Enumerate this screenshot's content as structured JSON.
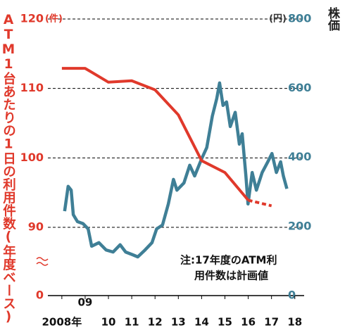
{
  "chart_data": {
    "type": "line",
    "ylabel": "ATM1台あたりの1日の利用件数(年度ベース)",
    "ylabel_unit": "(件)",
    "y2label": "株価",
    "y2label_unit": "(円)",
    "note": [
      "注:17年度のATM利",
      "用件数は計画値"
    ],
    "xlim": [
      2007.4,
      2018.4
    ],
    "xticks": [
      {
        "value": 2008,
        "label": "2008年"
      },
      {
        "value": 2009,
        "label": "09"
      },
      {
        "value": 2010,
        "label": "10"
      },
      {
        "value": 2011,
        "label": "11"
      },
      {
        "value": 2012,
        "label": "12"
      },
      {
        "value": 2013,
        "label": "13"
      },
      {
        "value": 2014,
        "label": "14"
      },
      {
        "value": 2015,
        "label": "15"
      },
      {
        "value": 2016,
        "label": "16"
      },
      {
        "value": 2017,
        "label": "17"
      },
      {
        "value": 2018,
        "label": "18"
      }
    ],
    "ylim": [
      0,
      120
    ],
    "yticks": [
      0,
      90,
      100,
      110,
      120
    ],
    "y_break": true,
    "y2lim": [
      0,
      800
    ],
    "y2ticks": [
      0,
      200,
      400,
      600,
      800
    ],
    "grid": true,
    "series": [
      {
        "color": "#e0392b",
        "dashed": false,
        "x": [
          2008,
          2009,
          2010,
          2011,
          2012,
          2013,
          2014,
          2015,
          2016
        ],
        "values": [
          112.9,
          112.9,
          110.9,
          111.1,
          109.8,
          106.2,
          99.6,
          97.9,
          93.9
        ]
      },
      {
        "color": "#e0392b",
        "dashed": true,
        "x": [
          2016,
          2017
        ],
        "values": [
          93.9,
          93.1
        ]
      },
      {
        "color": "#3f7f96",
        "dashed": false,
        "axis": "y2",
        "x": [
          2008.12,
          2008.27,
          2008.4,
          2008.49,
          2008.67,
          2008.91,
          2009.13,
          2009.28,
          2009.59,
          2009.9,
          2010.2,
          2010.5,
          2010.74,
          2011.04,
          2011.26,
          2011.57,
          2011.87,
          2012.07,
          2012.32,
          2012.57,
          2012.79,
          2012.94,
          2013.24,
          2013.49,
          2013.7,
          2014.01,
          2014.22,
          2014.46,
          2014.65,
          2014.77,
          2014.92,
          2015.07,
          2015.23,
          2015.44,
          2015.62,
          2015.74,
          2015.9,
          2015.99,
          2016.17,
          2016.35,
          2016.6,
          2016.84,
          2017.02,
          2017.21,
          2017.39,
          2017.51,
          2017.66
        ],
        "values": [
          244,
          316,
          305,
          234,
          214,
          208,
          193,
          143,
          153,
          132,
          126,
          147,
          126,
          118,
          112,
          132,
          153,
          193,
          204,
          265,
          336,
          305,
          326,
          377,
          346,
          397,
          428,
          519,
          570,
          615,
          550,
          560,
          489,
          530,
          438,
          468,
          346,
          265,
          356,
          305,
          356,
          387,
          411,
          356,
          387,
          346,
          309
        ]
      }
    ]
  }
}
